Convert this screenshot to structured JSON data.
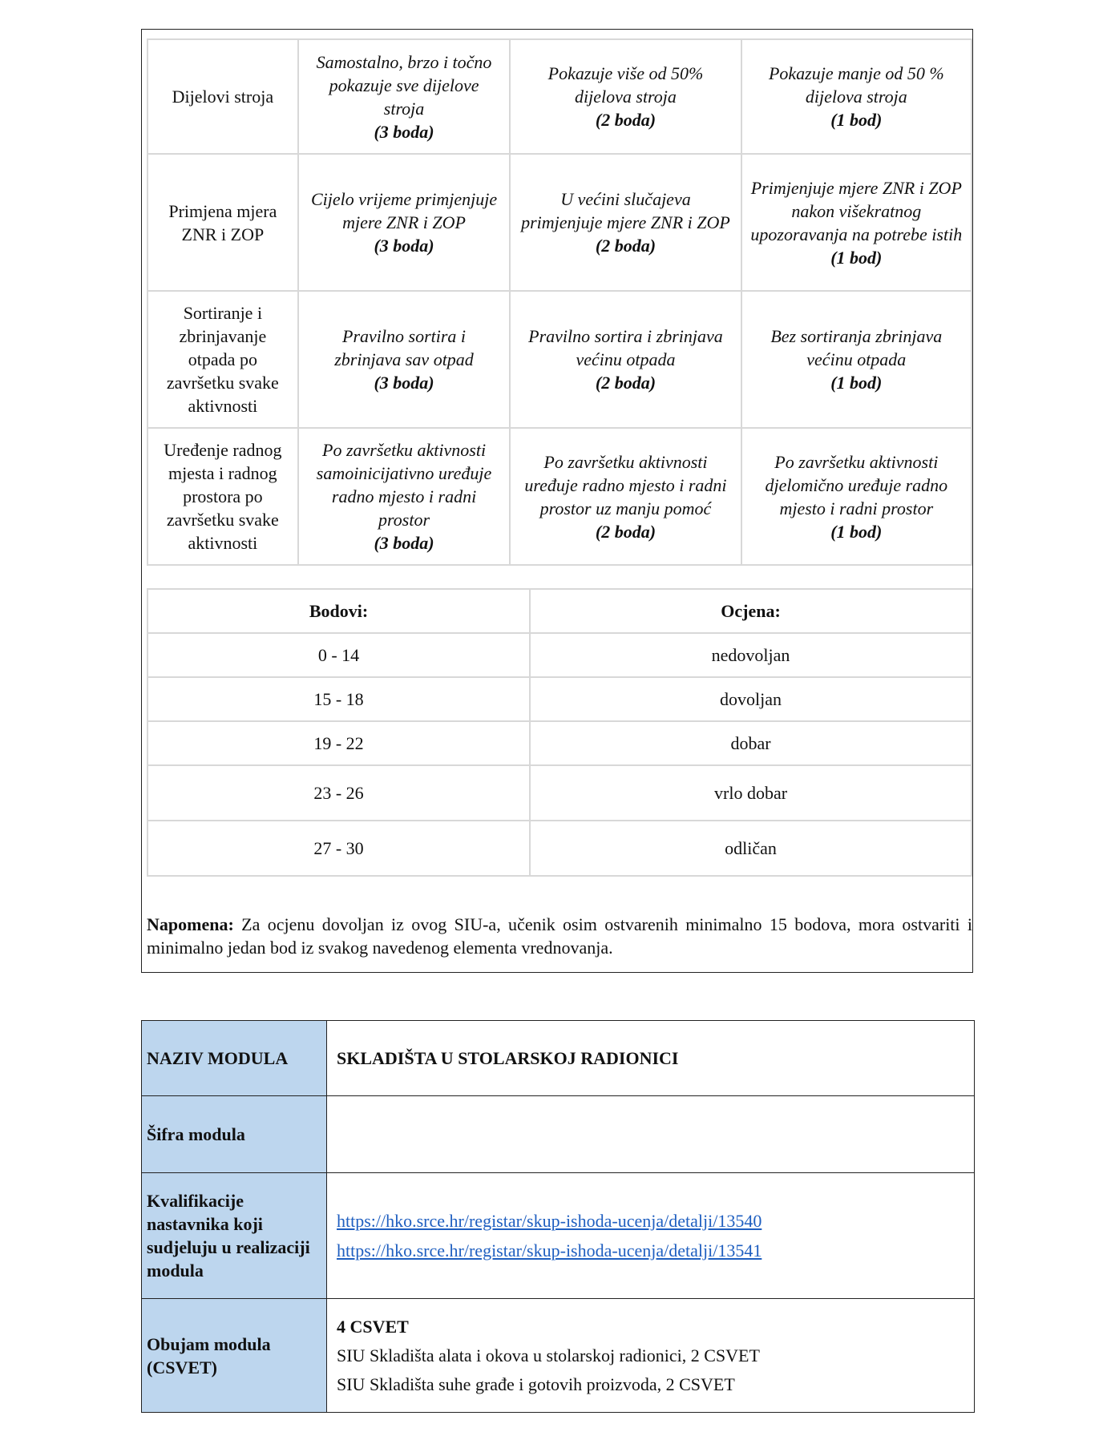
{
  "criteria": [
    {
      "name": "Dijelovi stroja",
      "c3": "Samostalno, brzo i točno pokazuje sve dijelove stroja",
      "p3": "(3 boda)",
      "c2": "Pokazuje više od 50% dijelova stroja",
      "p2": "(2 boda)",
      "c1": "Pokazuje manje od 50 % dijelova stroja",
      "p1": "(1 bod)"
    },
    {
      "name": "Primjena mjera ZNR i ZOP",
      "c3": "Cijelo vrijeme primjenjuje mjere ZNR i ZOP",
      "p3": "(3 boda)",
      "c2": "U većini slučajeva primjenjuje mjere ZNR i ZOP",
      "p2": "(2 boda)",
      "c1": "Primjenjuje mjere ZNR i ZOP nakon višekratnog upozoravanja na potrebe istih",
      "p1": "(1 bod)"
    },
    {
      "name": "Sortiranje i zbrinjavanje otpada po završetku svake aktivnosti",
      "c3": "Pravilno sortira i zbrinjava sav otpad",
      "p3": "(3 boda)",
      "c2": "Pravilno sortira i zbrinjava većinu otpada",
      "p2": "(2 boda)",
      "c1": "Bez sortiranja zbrinjava većinu otpada",
      "p1": "(1 bod)"
    },
    {
      "name": "Uređenje radnog mjesta i radnog prostora po završetku svake aktivnosti",
      "c3": "Po završetku aktivnosti samoinicijativno uređuje radno mjesto i radni prostor",
      "p3": "(3 boda)",
      "c2": "Po završetku aktivnosti uređuje radno mjesto i radni prostor uz manju pomoć",
      "p2": "(2 boda)",
      "c1": "Po završetku aktivnosti djelomično uređuje radno mjesto i radni prostor",
      "p1": "(1 bod)"
    }
  ],
  "grades": {
    "headers": [
      "Bodovi:",
      "Ocjena:"
    ],
    "rows": [
      [
        "0 - 14",
        "nedovoljan"
      ],
      [
        "15 - 18",
        "dovoljan"
      ],
      [
        "19 - 22",
        "dobar"
      ],
      [
        "23 - 26",
        "vrlo dobar"
      ],
      [
        "27 - 30",
        "odličan"
      ]
    ]
  },
  "note": {
    "label": "Napomena:",
    "text": " Za ocjenu dovoljan iz ovog SIU-a, učenik osim ostvarenih minimalno 15 bodova, mora ostvariti i minimalno jedan bod iz svakog navedenog elementa vrednovanja."
  },
  "module": {
    "name_label": "NAZIV MODULA",
    "name_value": "SKLADIŠTA U STOLARSKOJ RADIONICI",
    "code_label": "Šifra modula",
    "qual_label": "Kvalifikacije nastavnika koji sudjeluju u realizaciji modula",
    "links": [
      "https://hko.srce.hr/registar/skup-ishoda-ucenja/detalji/13540",
      "https://hko.srce.hr/registar/skup-ishoda-ucenja/detalji/13541"
    ],
    "volume_label": "Obujam modula (CSVET)",
    "volume_total": "4 CSVET",
    "volume_items": [
      "SIU Skladišta alata i okova u stolarskoj radionici, 2 CSVET",
      "SIU Skladišta suhe građe i gotovih proizvoda, 2 CSVET"
    ],
    "link_color": "#1f5fc0",
    "label_bg": "#bdd6ee"
  }
}
